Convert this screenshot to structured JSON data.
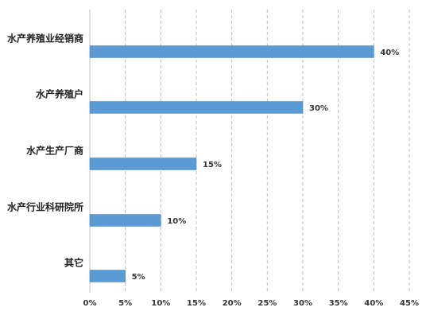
{
  "chart_data": {
    "type": "bar",
    "orientation": "horizontal",
    "categories": [
      "水产养殖业经销商",
      "水产养殖户",
      "水产生产厂商",
      "水产行业科研院所",
      "其它"
    ],
    "values": [
      40,
      30,
      15,
      10,
      5
    ],
    "value_labels": [
      "40%",
      "30%",
      "15%",
      "10%",
      "5%"
    ],
    "xlim": [
      0,
      45
    ],
    "xticks": [
      0,
      5,
      10,
      15,
      20,
      25,
      30,
      35,
      40,
      45
    ],
    "xtick_labels": [
      "0%",
      "5%",
      "10%",
      "15%",
      "20%",
      "25%",
      "30%",
      "35%",
      "40%",
      "45%"
    ],
    "grid": "vertical-dashed",
    "bar_color": "#5b9bd5",
    "grid_color": "#bfbfbf",
    "legend": "none"
  }
}
